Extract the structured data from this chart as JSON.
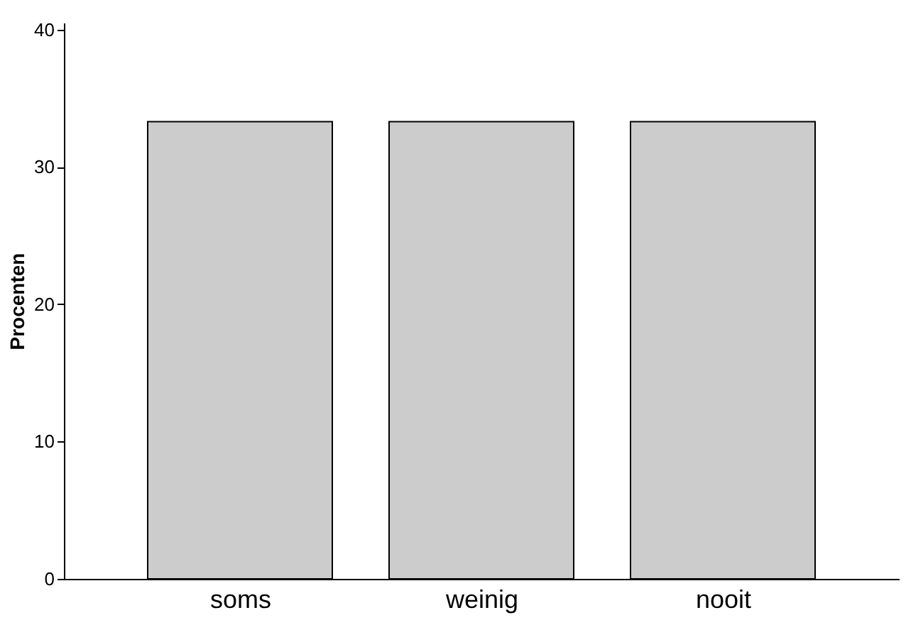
{
  "chart_data": {
    "type": "bar",
    "ylabel": "Procenten",
    "categories": [
      "soms",
      "weinig",
      "nooit"
    ],
    "values": [
      33.3,
      33.3,
      33.3
    ],
    "color": "#cccccc",
    "ylim": [
      0,
      40.5
    ],
    "yticks": [
      0,
      10,
      20,
      30,
      40
    ]
  }
}
